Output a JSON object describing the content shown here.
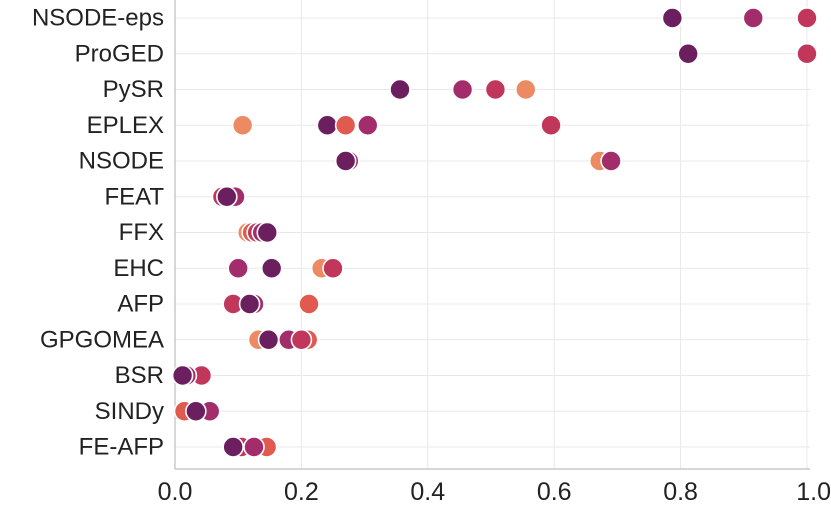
{
  "chart_data": {
    "type": "scatter",
    "title": "",
    "xlabel": "",
    "ylabel": "",
    "xlim": [
      0.0,
      1.0
    ],
    "grid": true,
    "legend": "none",
    "x_ticks": [
      "0.0",
      "0.2",
      "0.4",
      "0.6",
      "0.8",
      "1.0"
    ],
    "x_tick_values": [
      0.0,
      0.2,
      0.4,
      0.6,
      0.8,
      1.0
    ],
    "categories": [
      "NSODE-eps",
      "ProGED",
      "PySR",
      "EPLEX",
      "NSODE",
      "FEAT",
      "FFX",
      "EHC",
      "AFP",
      "GPGOMEA",
      "BSR",
      "SINDy",
      "FE-AFP"
    ],
    "palette": [
      "#eb8a63",
      "#e05a4f",
      "#c1375b",
      "#a32d6b",
      "#6b1f5e"
    ],
    "points": [
      {
        "category": "NSODE-eps",
        "x": 0.787,
        "color": 4
      },
      {
        "category": "NSODE-eps",
        "x": 0.915,
        "color": 3
      },
      {
        "category": "NSODE-eps",
        "x": 1.0,
        "color": 2
      },
      {
        "category": "ProGED",
        "x": 0.812,
        "color": 4
      },
      {
        "category": "ProGED",
        "x": 1.0,
        "color": 2
      },
      {
        "category": "PySR",
        "x": 0.356,
        "color": 4
      },
      {
        "category": "PySR",
        "x": 0.455,
        "color": 3
      },
      {
        "category": "PySR",
        "x": 0.507,
        "color": 2
      },
      {
        "category": "PySR",
        "x": 0.555,
        "color": 0
      },
      {
        "category": "EPLEX",
        "x": 0.107,
        "color": 0
      },
      {
        "category": "EPLEX",
        "x": 0.241,
        "color": 4
      },
      {
        "category": "EPLEX",
        "x": 0.27,
        "color": 1
      },
      {
        "category": "EPLEX",
        "x": 0.305,
        "color": 3
      },
      {
        "category": "EPLEX",
        "x": 0.595,
        "color": 2
      },
      {
        "category": "NSODE",
        "x": 0.275,
        "color": 3
      },
      {
        "category": "NSODE",
        "x": 0.27,
        "color": 4
      },
      {
        "category": "NSODE",
        "x": 0.672,
        "color": 0
      },
      {
        "category": "NSODE",
        "x": 0.69,
        "color": 3
      },
      {
        "category": "FEAT",
        "x": 0.075,
        "color": 2
      },
      {
        "category": "FEAT",
        "x": 0.095,
        "color": 3
      },
      {
        "category": "FEAT",
        "x": 0.082,
        "color": 4
      },
      {
        "category": "FFX",
        "x": 0.115,
        "color": 0
      },
      {
        "category": "FFX",
        "x": 0.122,
        "color": 1
      },
      {
        "category": "FFX",
        "x": 0.13,
        "color": 2
      },
      {
        "category": "FFX",
        "x": 0.138,
        "color": 3
      },
      {
        "category": "FFX",
        "x": 0.146,
        "color": 4
      },
      {
        "category": "EHC",
        "x": 0.1,
        "color": 3
      },
      {
        "category": "EHC",
        "x": 0.153,
        "color": 4
      },
      {
        "category": "EHC",
        "x": 0.232,
        "color": 0
      },
      {
        "category": "EHC",
        "x": 0.25,
        "color": 2
      },
      {
        "category": "AFP",
        "x": 0.092,
        "color": 2
      },
      {
        "category": "AFP",
        "x": 0.125,
        "color": 3
      },
      {
        "category": "AFP",
        "x": 0.118,
        "color": 4
      },
      {
        "category": "AFP",
        "x": 0.212,
        "color": 1
      },
      {
        "category": "GPGOMEA",
        "x": 0.132,
        "color": 0
      },
      {
        "category": "GPGOMEA",
        "x": 0.148,
        "color": 4
      },
      {
        "category": "GPGOMEA",
        "x": 0.18,
        "color": 3
      },
      {
        "category": "GPGOMEA",
        "x": 0.21,
        "color": 1
      },
      {
        "category": "GPGOMEA",
        "x": 0.2,
        "color": 2
      },
      {
        "category": "BSR",
        "x": 0.04,
        "color": 0
      },
      {
        "category": "BSR",
        "x": 0.042,
        "color": 2
      },
      {
        "category": "BSR",
        "x": 0.018,
        "color": 3
      },
      {
        "category": "BSR",
        "x": 0.012,
        "color": 4
      },
      {
        "category": "SINDy",
        "x": 0.015,
        "color": 1
      },
      {
        "category": "SINDy",
        "x": 0.055,
        "color": 3
      },
      {
        "category": "SINDy",
        "x": 0.033,
        "color": 4
      },
      {
        "category": "FE-AFP",
        "x": 0.145,
        "color": 1
      },
      {
        "category": "FE-AFP",
        "x": 0.105,
        "color": 2
      },
      {
        "category": "FE-AFP",
        "x": 0.125,
        "color": 3
      },
      {
        "category": "FE-AFP",
        "x": 0.092,
        "color": 4
      }
    ]
  }
}
